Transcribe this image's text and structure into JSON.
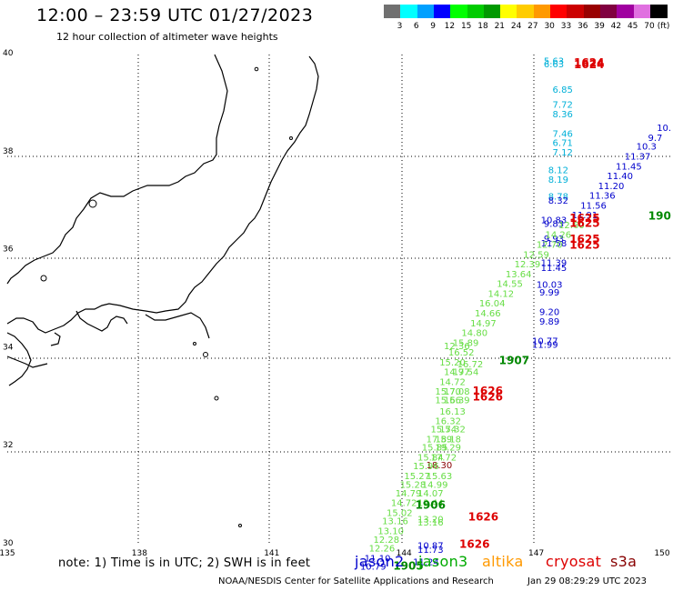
{
  "header": {
    "title": "12:00 – 23:59 UTC 01/27/2023",
    "subtitle": "12 hour collection of altimeter wave heights"
  },
  "scale": {
    "colors": [
      "#707070",
      "#00ffff",
      "#00a0ff",
      "#0000ff",
      "#00ff00",
      "#00cc00",
      "#009900",
      "#ffff00",
      "#ffcc00",
      "#ff9900",
      "#ff0000",
      "#cc0000",
      "#990000",
      "#800040",
      "#a000a0",
      "#e070e0",
      "#000000"
    ],
    "labels": [
      "3",
      "6",
      "9",
      "12",
      "15",
      "18",
      "21",
      "24",
      "27",
      "30",
      "33",
      "36",
      "39",
      "42",
      "45",
      "70"
    ],
    "unit": "(ft)"
  },
  "axes": {
    "x_ticks": [
      "135",
      "138",
      "141",
      "144",
      "147",
      "150"
    ],
    "y_ticks": [
      "40",
      "38",
      "36",
      "34",
      "32",
      "30"
    ]
  },
  "satellite_colors": {
    "jason2": "#0000cc",
    "jason3": "#00aa00",
    "altika": "#ff9900",
    "cryosat": "#dd0000",
    "s3a": "#880000",
    "cyan": "#00b0d8",
    "lgreen": "#66dd44",
    "dgreen": "#008800"
  },
  "swh_labels": [
    {
      "lon": 147.4,
      "lat": 39.77,
      "text": "5.63",
      "c": "cyan"
    },
    {
      "lon": 147.4,
      "lat": 39.7,
      "text": "6.63",
      "c": "cyan"
    },
    {
      "lon": 147.6,
      "lat": 39.18,
      "text": "6.85",
      "c": "cyan"
    },
    {
      "lon": 147.6,
      "lat": 38.88,
      "text": "7.72",
      "c": "cyan"
    },
    {
      "lon": 147.6,
      "lat": 38.68,
      "text": "8.36",
      "c": "cyan"
    },
    {
      "lon": 147.6,
      "lat": 38.28,
      "text": "7.46",
      "c": "cyan"
    },
    {
      "lon": 147.6,
      "lat": 38.1,
      "text": "6.71",
      "c": "cyan"
    },
    {
      "lon": 147.6,
      "lat": 37.9,
      "text": "7.12",
      "c": "cyan"
    },
    {
      "lon": 147.5,
      "lat": 37.54,
      "text": "8.12",
      "c": "cyan"
    },
    {
      "lon": 147.5,
      "lat": 37.35,
      "text": "8.19",
      "c": "cyan"
    },
    {
      "lon": 147.5,
      "lat": 37.0,
      "text": "8.78",
      "c": "cyan"
    },
    {
      "lon": 147.5,
      "lat": 36.92,
      "text": "8.32",
      "c": "jason2"
    },
    {
      "lon": 149.9,
      "lat": 38.4,
      "text": "10.",
      "c": "jason2"
    },
    {
      "lon": 149.7,
      "lat": 38.2,
      "text": "9.7",
      "c": "jason2"
    },
    {
      "lon": 149.5,
      "lat": 38.02,
      "text": "10.3",
      "c": "jason2"
    },
    {
      "lon": 149.3,
      "lat": 37.82,
      "text": "11.37",
      "c": "jason2"
    },
    {
      "lon": 149.1,
      "lat": 37.62,
      "text": "11.45",
      "c": "jason2"
    },
    {
      "lon": 148.9,
      "lat": 37.42,
      "text": "11.40",
      "c": "jason2"
    },
    {
      "lon": 148.7,
      "lat": 37.22,
      "text": "11.20",
      "c": "jason2"
    },
    {
      "lon": 148.5,
      "lat": 37.02,
      "text": "11.36",
      "c": "jason2"
    },
    {
      "lon": 148.3,
      "lat": 36.82,
      "text": "11.56",
      "c": "jason2"
    },
    {
      "lon": 148.1,
      "lat": 36.62,
      "text": "11.91",
      "c": "jason2"
    },
    {
      "lon": 147.4,
      "lat": 36.52,
      "text": "10.83",
      "c": "jason2"
    },
    {
      "lon": 147.4,
      "lat": 36.45,
      "text": "9.83",
      "c": "jason2"
    },
    {
      "lon": 147.4,
      "lat": 36.14,
      "text": "9.93",
      "c": "jason2"
    },
    {
      "lon": 147.4,
      "lat": 36.05,
      "text": "11.58",
      "c": "jason2"
    },
    {
      "lon": 147.4,
      "lat": 35.65,
      "text": "11.39",
      "c": "jason2"
    },
    {
      "lon": 147.4,
      "lat": 35.55,
      "text": "11.45",
      "c": "jason2"
    },
    {
      "lon": 147.3,
      "lat": 35.2,
      "text": "10.03",
      "c": "jason2"
    },
    {
      "lon": 147.3,
      "lat": 35.05,
      "text": "9.99",
      "c": "jason2"
    },
    {
      "lon": 147.3,
      "lat": 34.65,
      "text": "9.20",
      "c": "jason2"
    },
    {
      "lon": 147.3,
      "lat": 34.45,
      "text": "9.89",
      "c": "jason2"
    },
    {
      "lon": 147.2,
      "lat": 34.05,
      "text": "10.77",
      "c": "jason2"
    },
    {
      "lon": 147.2,
      "lat": 33.98,
      "text": "11.99",
      "c": "jason2"
    },
    {
      "lon": 147.8,
      "lat": 36.42,
      "text": "12.60",
      "c": "lgreen"
    },
    {
      "lon": 147.5,
      "lat": 36.22,
      "text": "14.26",
      "c": "lgreen"
    },
    {
      "lon": 147.3,
      "lat": 36.02,
      "text": "12.70",
      "c": "lgreen"
    },
    {
      "lon": 147.0,
      "lat": 35.82,
      "text": "12.59",
      "c": "lgreen"
    },
    {
      "lon": 146.8,
      "lat": 35.62,
      "text": "12.39",
      "c": "lgreen"
    },
    {
      "lon": 146.6,
      "lat": 35.42,
      "text": "13.64",
      "c": "lgreen"
    },
    {
      "lon": 146.4,
      "lat": 35.22,
      "text": "14.55",
      "c": "lgreen"
    },
    {
      "lon": 146.2,
      "lat": 35.02,
      "text": "14.12",
      "c": "lgreen"
    },
    {
      "lon": 146.0,
      "lat": 34.82,
      "text": "16.04",
      "c": "lgreen"
    },
    {
      "lon": 145.9,
      "lat": 34.62,
      "text": "14.66",
      "c": "lgreen"
    },
    {
      "lon": 145.8,
      "lat": 34.42,
      "text": "14.97",
      "c": "lgreen"
    },
    {
      "lon": 145.6,
      "lat": 34.22,
      "text": "14.80",
      "c": "lgreen"
    },
    {
      "lon": 145.4,
      "lat": 34.02,
      "text": "15.89",
      "c": "lgreen"
    },
    {
      "lon": 145.3,
      "lat": 33.82,
      "text": "16.52",
      "c": "lgreen"
    },
    {
      "lon": 145.2,
      "lat": 33.95,
      "text": "12.36",
      "c": "lgreen"
    },
    {
      "lon": 145.1,
      "lat": 33.62,
      "text": "15.20",
      "c": "lgreen"
    },
    {
      "lon": 145.2,
      "lat": 33.42,
      "text": "14.97",
      "c": "lgreen"
    },
    {
      "lon": 145.4,
      "lat": 33.42,
      "text": "17.54",
      "c": "lgreen"
    },
    {
      "lon": 145.5,
      "lat": 33.58,
      "text": "16.72",
      "c": "lgreen"
    },
    {
      "lon": 145.1,
      "lat": 33.22,
      "text": "14.72",
      "c": "lgreen"
    },
    {
      "lon": 145.0,
      "lat": 33.02,
      "text": "15.70",
      "c": "lgreen"
    },
    {
      "lon": 145.2,
      "lat": 33.02,
      "text": "17.08",
      "c": "lgreen"
    },
    {
      "lon": 145.0,
      "lat": 32.85,
      "text": "15.56",
      "c": "lgreen"
    },
    {
      "lon": 145.2,
      "lat": 32.85,
      "text": "16.39",
      "c": "lgreen"
    },
    {
      "lon": 145.1,
      "lat": 32.62,
      "text": "16.13",
      "c": "lgreen"
    },
    {
      "lon": 145.0,
      "lat": 32.42,
      "text": "16.32",
      "c": "lgreen"
    },
    {
      "lon": 144.9,
      "lat": 32.25,
      "text": "15.54",
      "c": "lgreen"
    },
    {
      "lon": 145.1,
      "lat": 32.25,
      "text": "17.32",
      "c": "lgreen"
    },
    {
      "lon": 144.8,
      "lat": 32.05,
      "text": "17.59",
      "c": "lgreen"
    },
    {
      "lon": 145.0,
      "lat": 32.05,
      "text": "18.18",
      "c": "lgreen"
    },
    {
      "lon": 144.7,
      "lat": 31.88,
      "text": "15.85",
      "c": "lgreen"
    },
    {
      "lon": 145.0,
      "lat": 31.88,
      "text": "19.29",
      "c": "lgreen"
    },
    {
      "lon": 144.6,
      "lat": 31.68,
      "text": "15.84",
      "c": "lgreen"
    },
    {
      "lon": 144.9,
      "lat": 31.68,
      "text": "17.72",
      "c": "lgreen"
    },
    {
      "lon": 144.8,
      "lat": 31.52,
      "text": "18.30",
      "c": "s3a"
    },
    {
      "lon": 144.5,
      "lat": 31.5,
      "text": "15.96",
      "c": "lgreen"
    },
    {
      "lon": 144.3,
      "lat": 31.3,
      "text": "15.27",
      "c": "lgreen"
    },
    {
      "lon": 144.8,
      "lat": 31.3,
      "text": "15.63",
      "c": "lgreen"
    },
    {
      "lon": 144.2,
      "lat": 31.12,
      "text": "15.28",
      "c": "lgreen"
    },
    {
      "lon": 144.7,
      "lat": 31.12,
      "text": "14.99",
      "c": "lgreen"
    },
    {
      "lon": 144.1,
      "lat": 30.95,
      "text": "14.79",
      "c": "lgreen"
    },
    {
      "lon": 144.6,
      "lat": 30.95,
      "text": "14.07",
      "c": "lgreen"
    },
    {
      "lon": 144.0,
      "lat": 30.75,
      "text": "14.72",
      "c": "lgreen"
    },
    {
      "lon": 144.6,
      "lat": 30.75,
      "text": "12.44",
      "c": "lgreen"
    },
    {
      "lon": 143.9,
      "lat": 30.55,
      "text": "15.02",
      "c": "lgreen"
    },
    {
      "lon": 143.8,
      "lat": 30.38,
      "text": "13.16",
      "c": "lgreen"
    },
    {
      "lon": 144.6,
      "lat": 30.42,
      "text": "13.20",
      "c": "lgreen"
    },
    {
      "lon": 144.6,
      "lat": 30.35,
      "text": "13.16",
      "c": "lgreen"
    },
    {
      "lon": 143.7,
      "lat": 30.18,
      "text": "13.10",
      "c": "lgreen"
    },
    {
      "lon": 143.6,
      "lat": 30.0,
      "text": "12.28",
      "c": "lgreen"
    },
    {
      "lon": 143.5,
      "lat": 29.82,
      "text": "12.26",
      "c": "lgreen"
    },
    {
      "lon": 144.6,
      "lat": 29.88,
      "text": "10.87",
      "c": "jason2"
    },
    {
      "lon": 144.6,
      "lat": 29.8,
      "text": "11.73",
      "c": "jason2"
    },
    {
      "lon": 143.4,
      "lat": 29.62,
      "text": "11.10",
      "c": "jason2"
    },
    {
      "lon": 144.5,
      "lat": 29.55,
      "text": "11.24",
      "c": "jason2"
    },
    {
      "lon": 143.3,
      "lat": 29.45,
      "text": "10.79",
      "c": "jason2"
    }
  ],
  "time_labels": [
    {
      "lon": 148.2,
      "lat": 39.72,
      "text": "1624",
      "c": "cryosat"
    },
    {
      "lon": 148.2,
      "lat": 39.68,
      "text": "1624",
      "c": "cryosat"
    },
    {
      "lon": 148.1,
      "lat": 36.55,
      "text": "1625",
      "c": "cryosat"
    },
    {
      "lon": 148.1,
      "lat": 36.45,
      "text": "1625",
      "c": "cryosat"
    },
    {
      "lon": 148.1,
      "lat": 36.12,
      "text": "1625",
      "c": "cryosat"
    },
    {
      "lon": 148.1,
      "lat": 36.0,
      "text": "1625",
      "c": "cryosat"
    },
    {
      "lon": 149.8,
      "lat": 36.6,
      "text": "190",
      "c": "dgreen"
    },
    {
      "lon": 146.5,
      "lat": 33.65,
      "text": "1907",
      "c": "dgreen"
    },
    {
      "lon": 145.9,
      "lat": 33.02,
      "text": "1626",
      "c": "cryosat"
    },
    {
      "lon": 145.9,
      "lat": 32.9,
      "text": "1626",
      "c": "cryosat"
    },
    {
      "lon": 144.6,
      "lat": 30.7,
      "text": "1906",
      "c": "dgreen"
    },
    {
      "lon": 145.8,
      "lat": 30.45,
      "text": "1626",
      "c": "cryosat"
    },
    {
      "lon": 145.6,
      "lat": 29.9,
      "text": "1626",
      "c": "cryosat"
    },
    {
      "lon": 144.1,
      "lat": 29.45,
      "text": "1905",
      "c": "dgreen"
    }
  ],
  "footer": {
    "note": "note: 1) Time is in UTC; 2) SWH is in feet",
    "satellites": {
      "jason2": "jason2",
      "jason3": "jason3",
      "altika": "altika",
      "cryosat": "cryosat",
      "s3a": "s3a"
    },
    "credit": "NOAA/NESDIS Center for Satellite Applications and Research",
    "timestamp": "Jan 29 08:29:29 UTC 2023"
  }
}
